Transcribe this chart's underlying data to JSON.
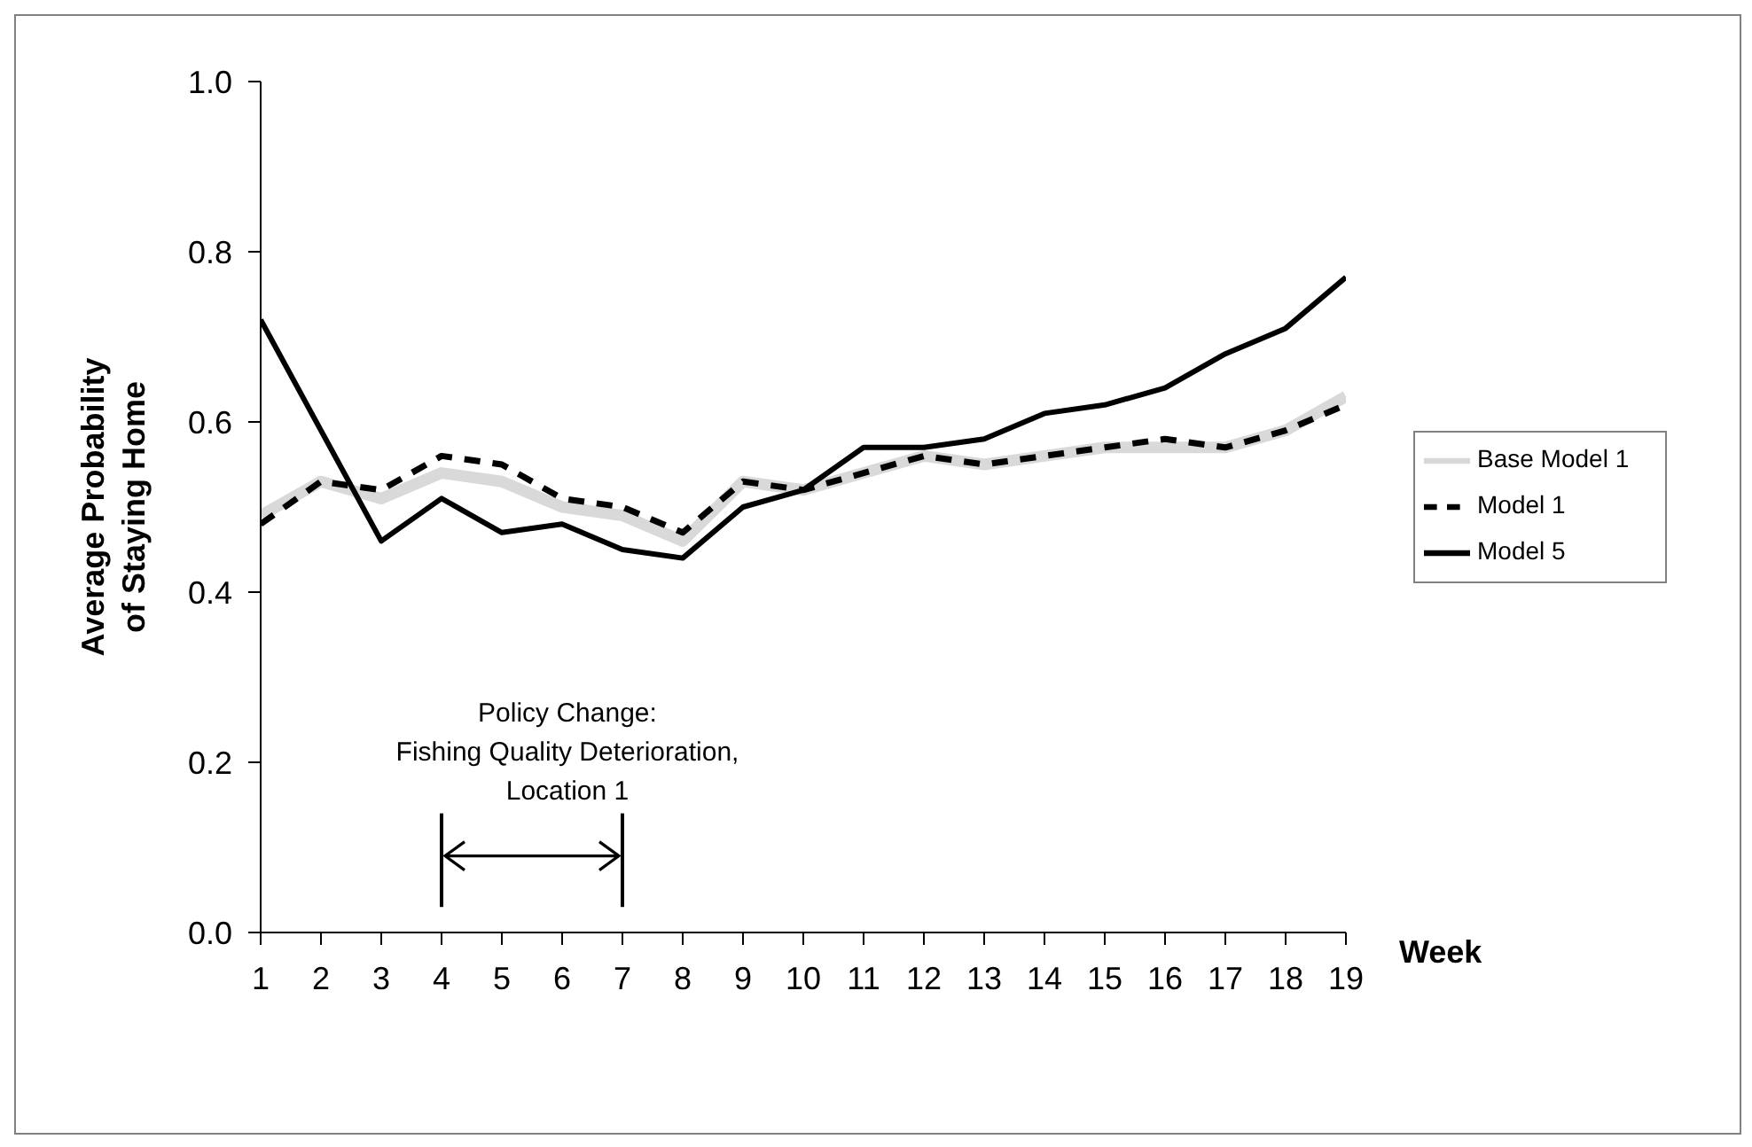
{
  "chart_data": {
    "type": "line",
    "ylabel": "Average Probability\nof Staying Home",
    "xlabel": "Week",
    "x": [
      1,
      2,
      3,
      4,
      5,
      6,
      7,
      8,
      9,
      10,
      11,
      12,
      13,
      14,
      15,
      16,
      17,
      18,
      19
    ],
    "series": [
      {
        "name": "Base Model 1",
        "color": "#d9d9d9",
        "line_style": "solid",
        "values": [
          0.49,
          0.53,
          0.51,
          0.54,
          0.53,
          0.5,
          0.49,
          0.46,
          0.53,
          0.52,
          0.54,
          0.56,
          0.55,
          0.56,
          0.57,
          0.57,
          0.57,
          0.59,
          0.63
        ]
      },
      {
        "name": "Model 1",
        "color": "#000000",
        "line_style": "dashed",
        "values": [
          0.48,
          0.53,
          0.52,
          0.56,
          0.55,
          0.51,
          0.5,
          0.47,
          0.53,
          0.52,
          0.54,
          0.56,
          0.55,
          0.56,
          0.57,
          0.58,
          0.57,
          0.59,
          0.62
        ]
      },
      {
        "name": "Model 5",
        "color": "#000000",
        "line_style": "solid",
        "values": [
          0.72,
          0.59,
          0.46,
          0.51,
          0.47,
          0.48,
          0.45,
          0.44,
          0.5,
          0.52,
          0.57,
          0.57,
          0.58,
          0.61,
          0.62,
          0.64,
          0.68,
          0.71,
          0.77
        ]
      }
    ],
    "xlim": [
      1,
      19
    ],
    "xticks": [
      1,
      2,
      3,
      4,
      5,
      6,
      7,
      8,
      9,
      10,
      11,
      12,
      13,
      14,
      15,
      16,
      17,
      18,
      19
    ],
    "ylim": [
      0,
      1
    ],
    "yticks": [
      {
        "value": 0,
        "label": "0.0"
      },
      {
        "value": 0.2,
        "label": "0.2"
      },
      {
        "value": 0.4,
        "label": "0.4"
      },
      {
        "value": 0.6,
        "label": "0.6"
      },
      {
        "value": 0.8,
        "label": "0.8"
      },
      {
        "value": 1,
        "label": "1.0"
      }
    ],
    "ref_lines": [
      {
        "axis": "x",
        "value": 4
      },
      {
        "axis": "x",
        "value": 7
      }
    ],
    "annotations": [
      "Policy Change:\nFishing Quality Deterioration,\nLocation 1"
    ],
    "legend": "right"
  }
}
